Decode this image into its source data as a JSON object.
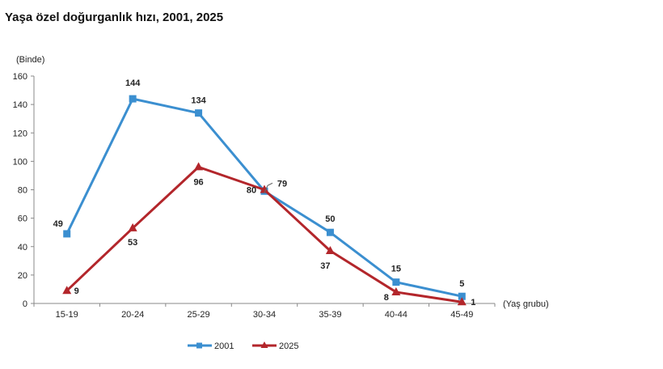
{
  "chart_data": {
    "type": "line",
    "title": "Yaşa özel doğurganlık hızı, 2001, 2025",
    "ylabel": "(Binde)",
    "xlabel": "(Yaş grubu)",
    "categories": [
      "15-19",
      "20-24",
      "25-29",
      "30-34",
      "35-39",
      "40-44",
      "45-49"
    ],
    "ylim": [
      0,
      160
    ],
    "yticks": [
      0,
      20,
      40,
      60,
      80,
      100,
      120,
      140,
      160
    ],
    "grid": false,
    "legend_position": "bottom",
    "series": [
      {
        "name": "2001",
        "values": [
          49,
          144,
          134,
          79,
          50,
          15,
          5
        ],
        "color": "#3b8fd0",
        "marker": "square"
      },
      {
        "name": "2025",
        "values": [
          9,
          53,
          96,
          80,
          37,
          8,
          1
        ],
        "color": "#b3262b",
        "marker": "triangle"
      }
    ]
  }
}
